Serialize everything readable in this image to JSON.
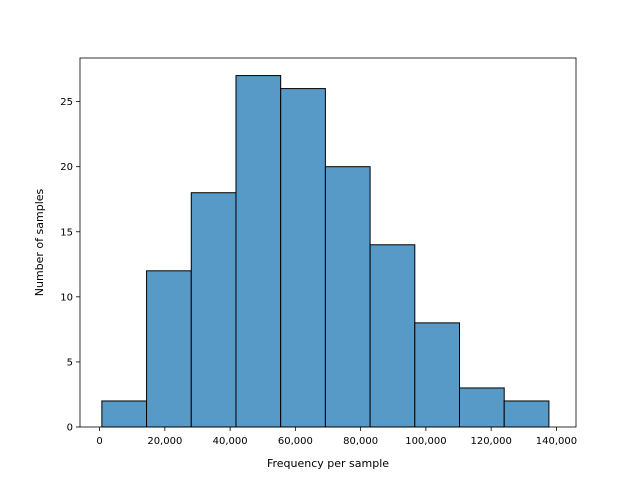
{
  "chart_data": {
    "type": "bar",
    "title": "",
    "xlabel": "Frequency per sample",
    "ylabel": "Number of samples",
    "bar_color": "#5799c7",
    "edge_color": "#000000",
    "grid": false,
    "legend": "none",
    "xlim": [
      -6000,
      146000
    ],
    "ylim": [
      0,
      28.35
    ],
    "x_ticks": [
      0,
      20000,
      40000,
      60000,
      80000,
      100000,
      120000,
      140000
    ],
    "x_tick_labels": [
      "0",
      "20,000",
      "40,000",
      "60,000",
      "80,000",
      "100,000",
      "120,000",
      "140,000"
    ],
    "y_ticks": [
      0,
      5,
      10,
      15,
      20,
      25
    ],
    "y_tick_labels": [
      "0",
      "5",
      "10",
      "15",
      "20",
      "25"
    ],
    "bins": [
      {
        "start": 700,
        "end": 14400,
        "count": 2
      },
      {
        "start": 14400,
        "end": 28100,
        "count": 12
      },
      {
        "start": 28100,
        "end": 41800,
        "count": 18
      },
      {
        "start": 41800,
        "end": 55500,
        "count": 27
      },
      {
        "start": 55500,
        "end": 69200,
        "count": 26
      },
      {
        "start": 69200,
        "end": 82900,
        "count": 20
      },
      {
        "start": 82900,
        "end": 96600,
        "count": 14
      },
      {
        "start": 96600,
        "end": 110300,
        "count": 8
      },
      {
        "start": 110300,
        "end": 124000,
        "count": 3
      },
      {
        "start": 124000,
        "end": 137700,
        "count": 2
      }
    ]
  }
}
